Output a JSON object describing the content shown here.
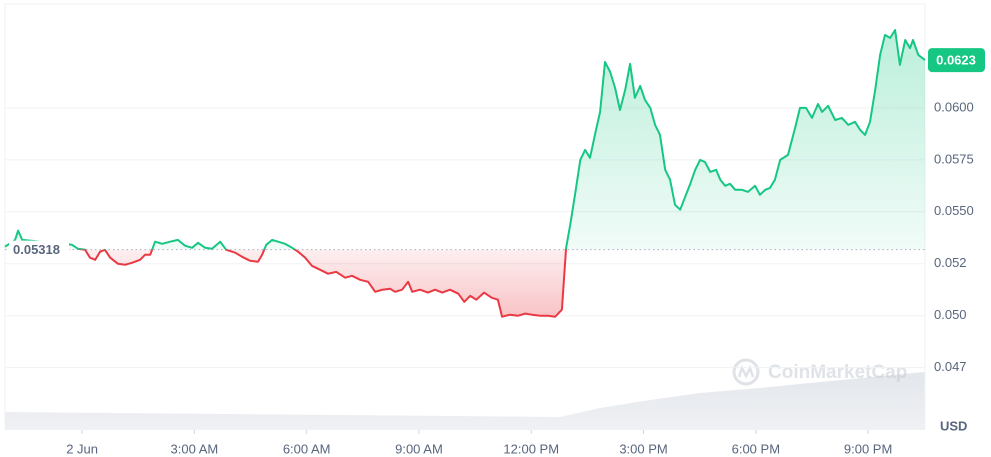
{
  "chart_data": {
    "type": "line",
    "x": [
      -2.06,
      -1.79,
      -1.71,
      -1.6,
      -0.27,
      -0.11,
      0.08,
      0.21,
      0.35,
      0.48,
      0.61,
      0.75,
      0.96,
      1.15,
      1.34,
      1.55,
      1.68,
      1.82,
      1.95,
      2.14,
      2.35,
      2.56,
      2.75,
      2.94,
      3.1,
      3.29,
      3.47,
      3.69,
      3.85,
      4.09,
      4.27,
      4.49,
      4.7,
      4.81,
      4.92,
      5.08,
      5.24,
      5.42,
      5.61,
      5.77,
      5.96,
      6.14,
      6.36,
      6.57,
      6.79,
      7.03,
      7.21,
      7.43,
      7.64,
      7.83,
      8.02,
      8.23,
      8.36,
      8.55,
      8.71,
      8.82,
      9.03,
      9.24,
      9.43,
      9.62,
      9.83,
      10.05,
      10.21,
      10.37,
      10.53,
      10.74,
      10.95,
      11.11,
      11.22,
      11.43,
      11.65,
      11.84,
      12.02,
      12.24,
      12.45,
      12.64,
      12.82,
      12.93,
      13.04,
      13.17,
      13.31,
      13.44,
      13.57,
      13.73,
      13.84,
      13.97,
      14.11,
      14.24,
      14.37,
      14.51,
      14.64,
      14.77,
      14.91,
      15.04,
      15.18,
      15.31,
      15.44,
      15.58,
      15.71,
      15.84,
      15.98,
      16.08,
      16.24,
      16.38,
      16.51,
      16.64,
      16.78,
      16.94,
      17.05,
      17.18,
      17.31,
      17.45,
      17.63,
      17.79,
      17.98,
      18.11,
      18.25,
      18.38,
      18.51,
      18.65,
      18.86,
      19.05,
      19.18,
      19.34,
      19.5,
      19.66,
      19.77,
      19.93,
      20.12,
      20.3,
      20.47,
      20.65,
      20.79,
      20.92,
      21.05,
      21.19,
      21.32,
      21.45,
      21.59,
      21.72,
      21.85,
      21.99,
      22.12,
      22.2,
      22.34,
      22.52
    ],
    "values": [
      0.05332,
      0.05365,
      0.05409,
      0.05365,
      0.05341,
      0.05322,
      0.05317,
      0.05279,
      0.05269,
      0.05308,
      0.05317,
      0.05279,
      0.0525,
      0.05245,
      0.05255,
      0.05269,
      0.05293,
      0.05293,
      0.05356,
      0.05346,
      0.05356,
      0.05365,
      0.05337,
      0.05327,
      0.05351,
      0.05327,
      0.05322,
      0.05356,
      0.05317,
      0.05303,
      0.05284,
      0.05264,
      0.0526,
      0.05293,
      0.05341,
      0.05365,
      0.05356,
      0.05346,
      0.05327,
      0.05308,
      0.05279,
      0.0524,
      0.05221,
      0.05202,
      0.05211,
      0.05183,
      0.05192,
      0.05173,
      0.05163,
      0.05115,
      0.05125,
      0.0513,
      0.05115,
      0.05125,
      0.05163,
      0.05115,
      0.05125,
      0.05111,
      0.05125,
      0.05111,
      0.05125,
      0.05106,
      0.05067,
      0.05096,
      0.05077,
      0.05111,
      0.05086,
      0.05077,
      0.04995,
      0.05005,
      0.05,
      0.0501,
      0.05005,
      0.05,
      0.05,
      0.04995,
      0.05029,
      0.05327,
      0.05437,
      0.05582,
      0.0575,
      0.05798,
      0.0576,
      0.05894,
      0.05981,
      0.06221,
      0.06173,
      0.06096,
      0.0599,
      0.06087,
      0.06212,
      0.06048,
      0.06106,
      0.06038,
      0.06,
      0.05918,
      0.0587,
      0.05702,
      0.05654,
      0.05534,
      0.0551,
      0.05558,
      0.0563,
      0.05702,
      0.0575,
      0.0574,
      0.05692,
      0.05702,
      0.05654,
      0.05625,
      0.05635,
      0.05606,
      0.05606,
      0.05596,
      0.05625,
      0.05582,
      0.05606,
      0.05615,
      0.05654,
      0.0575,
      0.05774,
      0.05904,
      0.06,
      0.06,
      0.05952,
      0.06019,
      0.05981,
      0.0601,
      0.05942,
      0.05952,
      0.05918,
      0.05933,
      0.05894,
      0.0587,
      0.05933,
      0.06087,
      0.06255,
      0.06351,
      0.06337,
      0.06375,
      0.06207,
      0.06327,
      0.06288,
      0.06327,
      0.06255,
      0.0623
    ],
    "xlim": [
      -2.06,
      22.52
    ],
    "xticks": [
      {
        "value": 0,
        "label": "2 Jun"
      },
      {
        "value": 3,
        "label": "3:00 AM"
      },
      {
        "value": 6,
        "label": "6:00 AM"
      },
      {
        "value": 9,
        "label": "9:00 AM"
      },
      {
        "value": 12,
        "label": "12:00 PM"
      },
      {
        "value": 15,
        "label": "3:00 PM"
      },
      {
        "value": 18,
        "label": "6:00 PM"
      },
      {
        "value": 21,
        "label": "9:00 PM"
      }
    ],
    "ylim": [
      0.0445,
      0.065
    ],
    "yticks": [
      {
        "value": 0.0475,
        "label": "0.047"
      },
      {
        "value": 0.05,
        "label": "0.050"
      },
      {
        "value": 0.0525,
        "label": "0.052"
      },
      {
        "value": 0.055,
        "label": "0.0550"
      },
      0.0575,
      {
        "value": 0.06,
        "label": "0.0600"
      }
    ],
    "baseline": 0.05318,
    "last_price": 0.0623,
    "currency": "USD",
    "watermark": "CoinMarketCap",
    "colors": {
      "up": "#16c784",
      "down": "#ea3943"
    },
    "grid": true
  }
}
